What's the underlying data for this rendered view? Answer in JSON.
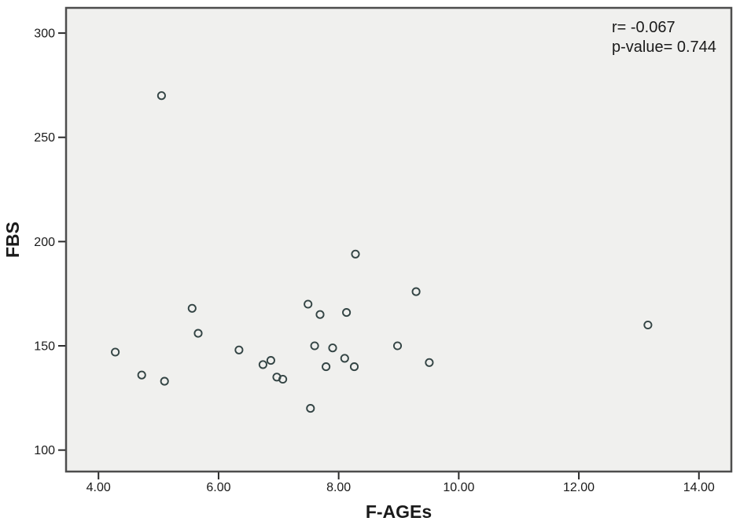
{
  "chart_data": {
    "type": "scatter",
    "title": "",
    "xlabel": "F-AGEs",
    "ylabel": "FBS",
    "annotation": [
      "r= -0.067",
      "p-value= 0.744"
    ],
    "x_ticks": [
      4.0,
      6.0,
      8.0,
      10.0,
      12.0,
      14.0
    ],
    "x_tick_labels": [
      "4.00",
      "6.00",
      "8.00",
      "10.00",
      "12.00",
      "14.00"
    ],
    "y_ticks": [
      100,
      150,
      200,
      250,
      300
    ],
    "y_tick_labels": [
      "100",
      "150",
      "200",
      "250",
      "300"
    ],
    "xlim": [
      3.46,
      14.54
    ],
    "ylim": [
      89.7,
      312.1
    ],
    "grid": false,
    "legend": "none",
    "marker": "open-circle",
    "points": [
      {
        "x": 4.28,
        "y": 147
      },
      {
        "x": 4.72,
        "y": 136
      },
      {
        "x": 5.05,
        "y": 270
      },
      {
        "x": 5.1,
        "y": 133
      },
      {
        "x": 5.56,
        "y": 168
      },
      {
        "x": 5.66,
        "y": 156
      },
      {
        "x": 6.34,
        "y": 148
      },
      {
        "x": 6.74,
        "y": 141
      },
      {
        "x": 6.87,
        "y": 143
      },
      {
        "x": 6.97,
        "y": 135
      },
      {
        "x": 7.07,
        "y": 134
      },
      {
        "x": 7.49,
        "y": 170
      },
      {
        "x": 7.53,
        "y": 120
      },
      {
        "x": 7.6,
        "y": 150
      },
      {
        "x": 7.69,
        "y": 165
      },
      {
        "x": 7.79,
        "y": 140
      },
      {
        "x": 7.9,
        "y": 149
      },
      {
        "x": 8.1,
        "y": 144
      },
      {
        "x": 8.13,
        "y": 166
      },
      {
        "x": 8.26,
        "y": 140
      },
      {
        "x": 8.28,
        "y": 194
      },
      {
        "x": 8.98,
        "y": 150
      },
      {
        "x": 9.29,
        "y": 176
      },
      {
        "x": 9.51,
        "y": 142
      },
      {
        "x": 13.15,
        "y": 160
      }
    ],
    "colors": {
      "page_bg": "#ffffff",
      "plot_bg": "#f0f0ee",
      "plot_border": "#4d4d4d",
      "marker_stroke": "#334444",
      "tick_color": "#2b2b2b",
      "text_color": "#1a1a1a"
    }
  }
}
